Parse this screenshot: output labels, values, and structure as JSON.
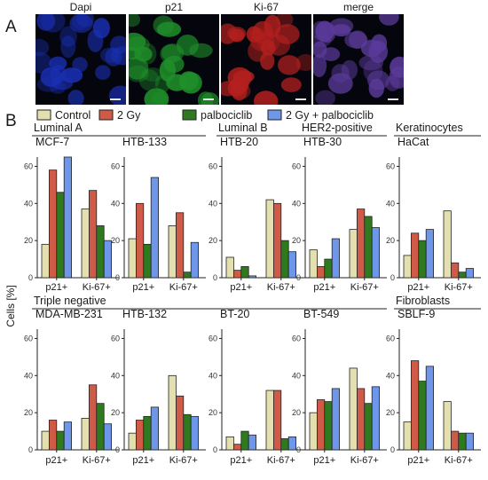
{
  "panel_labels": {
    "a": "A",
    "b": "B"
  },
  "micrographs": {
    "labels": [
      "Dapi",
      "p21",
      "Ki-67",
      "merge"
    ],
    "tints": [
      "#1a2fb4",
      "#1f8f2a",
      "#b3201e",
      "#5a3a9a"
    ]
  },
  "legend": [
    {
      "label": "Control",
      "color": "#e3dfae"
    },
    {
      "label": "2 Gy",
      "color": "#cf5a48"
    },
    {
      "label": "palbociclib",
      "color": "#2f7a1f"
    },
    {
      "label": "2 Gy + palbociclib",
      "color": "#6e97ea"
    }
  ],
  "groups": {
    "top": [
      {
        "label": "Luminal A",
        "span": [
          0,
          1
        ]
      },
      {
        "label": "Luminal B",
        "span": [
          2,
          2
        ]
      },
      {
        "label": "HER2-positive",
        "span": [
          3,
          3
        ]
      },
      {
        "label": "Keratinocytes",
        "span": [
          4,
          4
        ]
      }
    ],
    "bottom": [
      {
        "label": "Triple negative",
        "span": [
          0,
          3
        ]
      },
      {
        "label": "Fibroblasts",
        "span": [
          4,
          4
        ]
      }
    ]
  },
  "ylabel": "Cells [%]",
  "chart_data": [
    {
      "type": "bar",
      "title": "MCF-7",
      "categories": [
        "p21+",
        "Ki-67+"
      ],
      "ylim": [
        0,
        65
      ],
      "yticks": [
        0,
        20,
        40,
        60
      ],
      "series": [
        {
          "name": "Control",
          "values": [
            18,
            37
          ]
        },
        {
          "name": "2 Gy",
          "values": [
            58,
            47
          ]
        },
        {
          "name": "palbociclib",
          "values": [
            46,
            28
          ]
        },
        {
          "name": "2 Gy + palbociclib",
          "values": [
            65,
            20
          ]
        }
      ]
    },
    {
      "type": "bar",
      "title": "HTB-133",
      "categories": [
        "p21+",
        "Ki-67+"
      ],
      "ylim": [
        0,
        65
      ],
      "yticks": [
        0,
        20,
        40,
        60
      ],
      "series": [
        {
          "name": "Control",
          "values": [
            21,
            28
          ]
        },
        {
          "name": "2 Gy",
          "values": [
            40,
            35
          ]
        },
        {
          "name": "palbociclib",
          "values": [
            18,
            3
          ]
        },
        {
          "name": "2 Gy + palbociclib",
          "values": [
            54,
            19
          ]
        }
      ]
    },
    {
      "type": "bar",
      "title": "HTB-20",
      "categories": [
        "p21+",
        "Ki-67+"
      ],
      "ylim": [
        0,
        65
      ],
      "yticks": [
        0,
        20,
        40,
        60
      ],
      "series": [
        {
          "name": "Control",
          "values": [
            11,
            42
          ]
        },
        {
          "name": "2 Gy",
          "values": [
            4,
            40
          ]
        },
        {
          "name": "palbociclib",
          "values": [
            6,
            20
          ]
        },
        {
          "name": "2 Gy + palbociclib",
          "values": [
            1,
            14
          ]
        }
      ]
    },
    {
      "type": "bar",
      "title": "HTB-30",
      "categories": [
        "p21+",
        "Ki-67+"
      ],
      "ylim": [
        0,
        65
      ],
      "yticks": [
        0,
        20,
        40,
        60
      ],
      "series": [
        {
          "name": "Control",
          "values": [
            15,
            26
          ]
        },
        {
          "name": "2 Gy",
          "values": [
            6,
            37
          ]
        },
        {
          "name": "palbociclib",
          "values": [
            10,
            33
          ]
        },
        {
          "name": "2 Gy + palbociclib",
          "values": [
            21,
            27
          ]
        }
      ]
    },
    {
      "type": "bar",
      "title": "HaCat",
      "categories": [
        "p21+",
        "Ki-67+"
      ],
      "ylim": [
        0,
        65
      ],
      "yticks": [
        0,
        20,
        40,
        60
      ],
      "series": [
        {
          "name": "Control",
          "values": [
            12,
            36
          ]
        },
        {
          "name": "2 Gy",
          "values": [
            24,
            8
          ]
        },
        {
          "name": "palbociclib",
          "values": [
            20,
            3
          ]
        },
        {
          "name": "2 Gy + palbociclib",
          "values": [
            26,
            5
          ]
        }
      ]
    },
    {
      "type": "bar",
      "title": "MDA-MB-231",
      "categories": [
        "p21+",
        "Ki-67+"
      ],
      "ylim": [
        0,
        65
      ],
      "yticks": [
        0,
        20,
        40,
        60
      ],
      "series": [
        {
          "name": "Control",
          "values": [
            10,
            17
          ]
        },
        {
          "name": "2 Gy",
          "values": [
            16,
            35
          ]
        },
        {
          "name": "palbociclib",
          "values": [
            10,
            25
          ]
        },
        {
          "name": "2 Gy + palbociclib",
          "values": [
            15,
            14
          ]
        }
      ]
    },
    {
      "type": "bar",
      "title": "HTB-132",
      "categories": [
        "p21+",
        "Ki-67+"
      ],
      "ylim": [
        0,
        65
      ],
      "yticks": [
        0,
        20,
        40,
        60
      ],
      "series": [
        {
          "name": "Control",
          "values": [
            9,
            40
          ]
        },
        {
          "name": "2 Gy",
          "values": [
            16,
            29
          ]
        },
        {
          "name": "palbociclib",
          "values": [
            18,
            19
          ]
        },
        {
          "name": "2 Gy + palbociclib",
          "values": [
            23,
            18
          ]
        }
      ]
    },
    {
      "type": "bar",
      "title": "BT-20",
      "categories": [
        "p21+",
        "Ki-67+"
      ],
      "ylim": [
        0,
        65
      ],
      "yticks": [
        0,
        20,
        40,
        60
      ],
      "series": [
        {
          "name": "Control",
          "values": [
            7,
            32
          ]
        },
        {
          "name": "2 Gy",
          "values": [
            3,
            32
          ]
        },
        {
          "name": "palbociclib",
          "values": [
            10,
            6
          ]
        },
        {
          "name": "2 Gy + palbociclib",
          "values": [
            8,
            7
          ]
        }
      ]
    },
    {
      "type": "bar",
      "title": "BT-549",
      "categories": [
        "p21+",
        "Ki-67+"
      ],
      "ylim": [
        0,
        65
      ],
      "yticks": [
        0,
        20,
        40,
        60
      ],
      "series": [
        {
          "name": "Control",
          "values": [
            20,
            44
          ]
        },
        {
          "name": "2 Gy",
          "values": [
            27,
            33
          ]
        },
        {
          "name": "palbociclib",
          "values": [
            26,
            25
          ]
        },
        {
          "name": "2 Gy + palbociclib",
          "values": [
            33,
            34
          ]
        }
      ]
    },
    {
      "type": "bar",
      "title": "SBLF-9",
      "categories": [
        "p21+",
        "Ki-67+"
      ],
      "ylim": [
        0,
        65
      ],
      "yticks": [
        0,
        20,
        40,
        60
      ],
      "series": [
        {
          "name": "Control",
          "values": [
            15,
            26
          ]
        },
        {
          "name": "2 Gy",
          "values": [
            48,
            10
          ]
        },
        {
          "name": "palbociclib",
          "values": [
            37,
            9
          ]
        },
        {
          "name": "2 Gy + palbociclib",
          "values": [
            45,
            9
          ]
        }
      ]
    }
  ]
}
